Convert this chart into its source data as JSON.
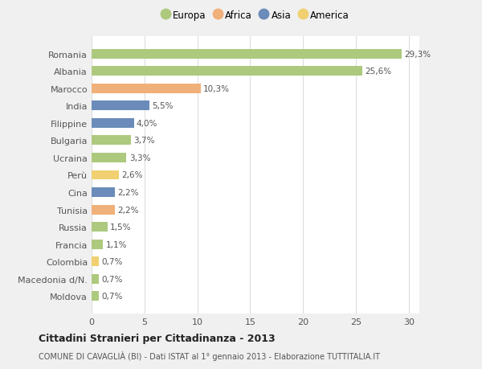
{
  "categories": [
    "Romania",
    "Albania",
    "Marocco",
    "India",
    "Filippine",
    "Bulgaria",
    "Ucraina",
    "Perù",
    "Cina",
    "Tunisia",
    "Russia",
    "Francia",
    "Colombia",
    "Macedonia d/N.",
    "Moldova"
  ],
  "values": [
    29.3,
    25.6,
    10.3,
    5.5,
    4.0,
    3.7,
    3.3,
    2.6,
    2.2,
    2.2,
    1.5,
    1.1,
    0.7,
    0.7,
    0.7
  ],
  "labels": [
    "29,3%",
    "25,6%",
    "10,3%",
    "5,5%",
    "4,0%",
    "3,7%",
    "3,3%",
    "2,6%",
    "2,2%",
    "2,2%",
    "1,5%",
    "1,1%",
    "0,7%",
    "0,7%",
    "0,7%"
  ],
  "colors": [
    "#adc97e",
    "#adc97e",
    "#f0b07a",
    "#6b8cba",
    "#6b8cba",
    "#adc97e",
    "#adc97e",
    "#f0d070",
    "#6b8cba",
    "#f0b07a",
    "#adc97e",
    "#adc97e",
    "#f0d070",
    "#adc97e",
    "#adc97e"
  ],
  "legend_labels": [
    "Europa",
    "Africa",
    "Asia",
    "America"
  ],
  "legend_colors": [
    "#adc97e",
    "#f0b07a",
    "#6b8cba",
    "#f0d070"
  ],
  "title": "Cittadini Stranieri per Cittadinanza - 2013",
  "subtitle": "COMUNE DI CAVAGLIÀ (BI) - Dati ISTAT al 1° gennaio 2013 - Elaborazione TUTTITALIA.IT",
  "xlim": [
    0,
    31
  ],
  "xticks": [
    0,
    5,
    10,
    15,
    20,
    25,
    30
  ],
  "background_color": "#f0f0f0",
  "plot_background": "#ffffff",
  "grid_color": "#dddddd"
}
